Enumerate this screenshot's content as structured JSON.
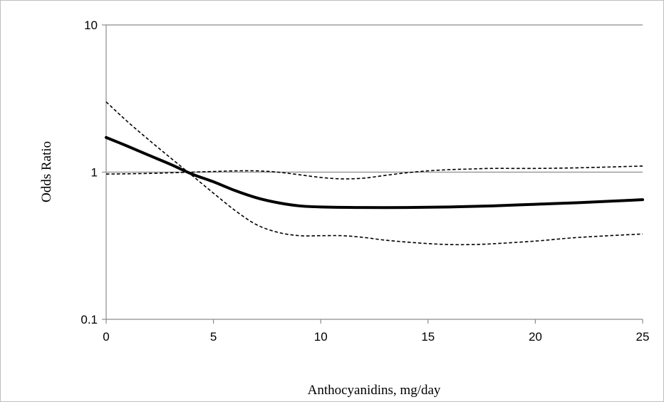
{
  "chart_data": {
    "type": "line",
    "title": "",
    "xlabel": "Anthocyanidins, mg/day",
    "ylabel": "Odds Ratio",
    "xlim": [
      0,
      25
    ],
    "ylim": [
      0.1,
      10
    ],
    "yscale": "log",
    "grid": "horizontal",
    "legend": "none",
    "x_ticks": [
      "0",
      "5",
      "10",
      "15",
      "20",
      "25"
    ],
    "y_ticks": [
      "0.1",
      "1",
      "10"
    ],
    "x_tick_values": [
      0,
      5,
      10,
      15,
      20,
      25
    ],
    "y_tick_values": [
      0.1,
      1,
      10
    ],
    "colors": {
      "line": "#000000",
      "grid": "#8c8c8c",
      "axis": "#8c8c8c"
    },
    "series": [
      {
        "style": "solid",
        "x": [
          0,
          1,
          2,
          3,
          4,
          5,
          6,
          7,
          8,
          9,
          10,
          12,
          14,
          16,
          18,
          20,
          22,
          25
        ],
        "y": [
          1.72,
          1.5,
          1.3,
          1.13,
          0.97,
          0.86,
          0.75,
          0.67,
          0.62,
          0.59,
          0.58,
          0.575,
          0.575,
          0.58,
          0.59,
          0.605,
          0.62,
          0.65
        ]
      },
      {
        "style": "dashed",
        "x": [
          0,
          1,
          2,
          3,
          4,
          5,
          6,
          7,
          8,
          9,
          10,
          11,
          12,
          13,
          14,
          15,
          16,
          17,
          18,
          20,
          22,
          25
        ],
        "y": [
          3.0,
          2.2,
          1.65,
          1.25,
          0.95,
          0.72,
          0.55,
          0.44,
          0.39,
          0.37,
          0.37,
          0.37,
          0.36,
          0.345,
          0.335,
          0.327,
          0.322,
          0.322,
          0.326,
          0.34,
          0.36,
          0.38
        ]
      },
      {
        "style": "dashed",
        "x": [
          0,
          2,
          3,
          4,
          5,
          6,
          7,
          8,
          9,
          10,
          11,
          12,
          13,
          14,
          15,
          16,
          17,
          18,
          20,
          22,
          25
        ],
        "y": [
          0.97,
          0.98,
          0.99,
          1.0,
          1.01,
          1.02,
          1.02,
          1.0,
          0.96,
          0.92,
          0.9,
          0.91,
          0.95,
          0.99,
          1.02,
          1.04,
          1.05,
          1.06,
          1.06,
          1.07,
          1.1
        ]
      }
    ]
  }
}
